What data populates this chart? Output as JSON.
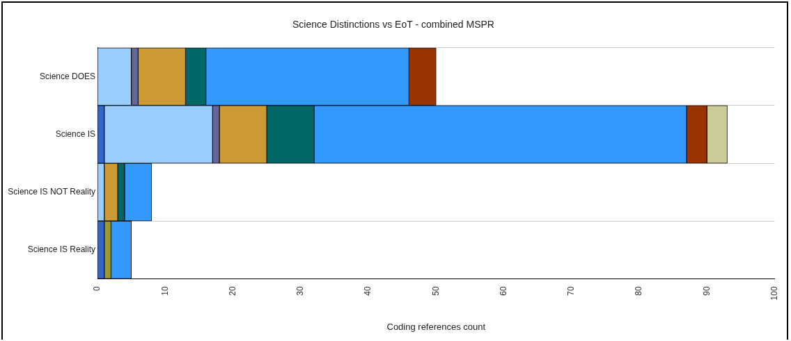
{
  "chart_data": {
    "type": "bar",
    "orientation": "horizontal",
    "stacked": true,
    "title": "Science Distinctions vs EoT - combined MSPR",
    "xlabel": "Coding references count",
    "categories": [
      "Science DOES",
      "Science IS",
      "Science IS NOT Reality",
      "Science IS Reality"
    ],
    "series": [
      {
        "color": "#3366cc",
        "values": [
          null,
          1,
          null,
          1
        ]
      },
      {
        "color": "#99ccff",
        "values": [
          5,
          16,
          1,
          null
        ]
      },
      {
        "color": "#666699",
        "values": [
          1,
          1,
          null,
          null
        ]
      },
      {
        "color": "#999933",
        "values": [
          null,
          null,
          null,
          1
        ]
      },
      {
        "color": "#cc9933",
        "values": [
          7,
          7,
          2,
          null
        ]
      },
      {
        "color": "#006666",
        "values": [
          3,
          7,
          1,
          null
        ]
      },
      {
        "color": "#3399ff",
        "values": [
          30,
          55,
          4,
          3
        ]
      },
      {
        "color": "#993300",
        "values": [
          4,
          3,
          null,
          null
        ]
      },
      {
        "color": "#cccc99",
        "values": [
          null,
          3,
          null,
          null
        ]
      }
    ],
    "xlim": [
      0,
      100
    ],
    "xticks": [
      0,
      10,
      20,
      30,
      40,
      50,
      60,
      70,
      80,
      90,
      100
    ],
    "grid": "y",
    "legend": false
  }
}
